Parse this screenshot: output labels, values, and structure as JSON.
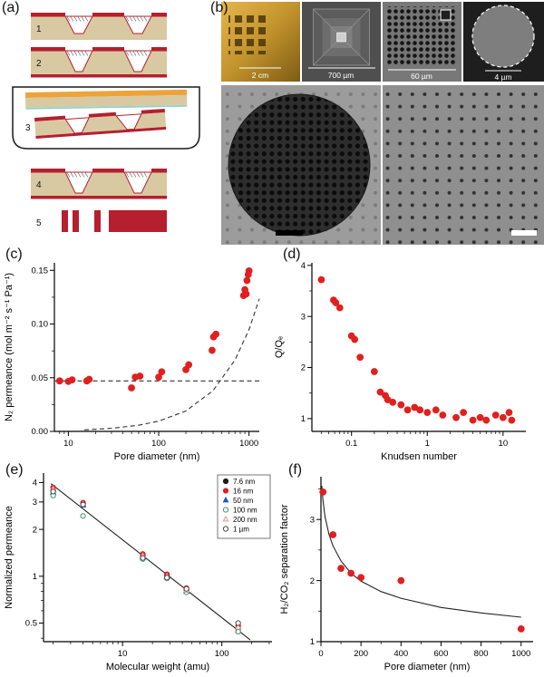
{
  "figure": {
    "panels": {
      "a": {
        "label": "(a)",
        "steps": [
          "1",
          "2",
          "3",
          "4",
          "5"
        ]
      },
      "b": {
        "label": "(b)",
        "scale_labels": [
          "2 cm",
          "700 µm",
          "60 µm",
          "4 µm"
        ]
      },
      "c": {
        "label": "(c)"
      },
      "d": {
        "label": "(d)"
      },
      "e": {
        "label": "(e)"
      },
      "f": {
        "label": "(f)"
      }
    }
  },
  "colors": {
    "data_red": "#e0201f",
    "schematic_red": "#b51f2e",
    "schematic_tan": "#d8c9a3",
    "schematic_orange": "#eda33b",
    "series_black": "#1a1a1a",
    "series_blue": "#2456c4",
    "series_green": "#3d9a62",
    "series_pink": "#ef8f8f",
    "series_dark": "#44474f"
  },
  "chart_data": [
    {
      "id": "c",
      "type": "scatter",
      "xlabel": "Pore diameter (nm)",
      "ylabel": "N₂ permeance (mol m⁻² s⁻¹ Pa⁻¹)",
      "x_scale": "log",
      "x_domain": [
        7,
        1300
      ],
      "x_ticks": [
        10,
        100,
        1000
      ],
      "x_tick_labels": [
        "10",
        "100",
        "1000"
      ],
      "y_scale": "linear",
      "y_domain": [
        0,
        0.157
      ],
      "y_ticks": [
        0,
        0.05,
        0.1,
        0.15
      ],
      "y_tick_labels": [
        "0.00",
        "0.05",
        "0.10",
        "0.15"
      ],
      "y_minor": [
        0.025,
        0.075,
        0.125
      ],
      "lines": [
        {
          "name": "effusion-limit-dashed",
          "style": "dashed",
          "color": "#333333",
          "points": [
            [
              7,
              0.047
            ],
            [
              1300,
              0.047
            ]
          ]
        },
        {
          "name": "continuum-model-dashed",
          "style": "dashed",
          "color": "#333333",
          "points": [
            [
              15,
              0.0014
            ],
            [
              30,
              0.0029
            ],
            [
              60,
              0.0057
            ],
            [
              100,
              0.0095
            ],
            [
              200,
              0.019
            ],
            [
              400,
              0.038
            ],
            [
              700,
              0.0665
            ],
            [
              1000,
              0.095
            ],
            [
              1300,
              0.1235
            ]
          ]
        }
      ],
      "series": [
        {
          "name": "N2 permeance",
          "marker": "circle",
          "color": "#e0201f",
          "open": false,
          "size": 3.4,
          "points": [
            [
              8,
              0.047
            ],
            [
              10,
              0.0465
            ],
            [
              11,
              0.048
            ],
            [
              16,
              0.047
            ],
            [
              17,
              0.0485
            ],
            [
              50,
              0.0405
            ],
            [
              55,
              0.0505
            ],
            [
              62,
              0.0515
            ],
            [
              100,
              0.0505
            ],
            [
              108,
              0.0555
            ],
            [
              200,
              0.0575
            ],
            [
              215,
              0.062
            ],
            [
              390,
              0.0755
            ],
            [
              405,
              0.088
            ],
            [
              430,
              0.0905
            ],
            [
              870,
              0.1265
            ],
            [
              900,
              0.132
            ],
            [
              930,
              0.128
            ],
            [
              950,
              0.1405
            ],
            [
              980,
              0.146
            ],
            [
              1000,
              0.1495
            ]
          ]
        }
      ]
    },
    {
      "id": "d",
      "type": "scatter",
      "xlabel": "Knudsen number",
      "ylabel": "Q/Qₑ",
      "x_scale": "log",
      "x_domain": [
        0.03,
        20
      ],
      "x_ticks": [
        0.1,
        1,
        10
      ],
      "x_tick_labels": [
        "0.1",
        "1",
        "10"
      ],
      "y_scale": "linear",
      "y_domain": [
        0.75,
        4.05
      ],
      "y_ticks": [
        1,
        2,
        3,
        4
      ],
      "y_tick_labels": [
        "1",
        "2",
        "3",
        "4"
      ],
      "y_minor": [
        1.5,
        2.5,
        3.5
      ],
      "series": [
        {
          "name": "Q over QE",
          "marker": "circle",
          "color": "#e0201f",
          "open": false,
          "size": 3.4,
          "points": [
            [
              0.04,
              3.72
            ],
            [
              0.058,
              3.32
            ],
            [
              0.062,
              3.27
            ],
            [
              0.07,
              3.17
            ],
            [
              0.1,
              2.62
            ],
            [
              0.11,
              2.55
            ],
            [
              0.13,
              2.2
            ],
            [
              0.2,
              1.92
            ],
            [
              0.24,
              1.52
            ],
            [
              0.28,
              1.45
            ],
            [
              0.3,
              1.37
            ],
            [
              0.35,
              1.32
            ],
            [
              0.45,
              1.27
            ],
            [
              0.55,
              1.17
            ],
            [
              0.68,
              1.22
            ],
            [
              0.8,
              1.17
            ],
            [
              1.0,
              1.12
            ],
            [
              1.3,
              1.17
            ],
            [
              1.6,
              1.07
            ],
            [
              2.4,
              1.02
            ],
            [
              3.0,
              1.12
            ],
            [
              4.0,
              0.97
            ],
            [
              5.0,
              1.02
            ],
            [
              6.0,
              0.97
            ],
            [
              8.0,
              1.07
            ],
            [
              10,
              1.02
            ],
            [
              12,
              1.12
            ],
            [
              13,
              0.97
            ]
          ]
        }
      ]
    },
    {
      "id": "e",
      "type": "scatter",
      "xlabel": "Molecular weight (amu)",
      "ylabel": "Normalized permeance",
      "x_scale": "log",
      "x_domain": [
        1.6,
        320
      ],
      "x_ticks": [
        10,
        100
      ],
      "x_tick_labels": [
        "10",
        "100"
      ],
      "y_scale": "log",
      "y_domain": [
        0.38,
        4.6
      ],
      "y_ticks": [
        0.5,
        1,
        2,
        3,
        4
      ],
      "y_tick_labels": [
        "0.5",
        "1",
        "2",
        "3",
        "4"
      ],
      "y_minor": [
        0.4,
        0.6,
        0.7,
        0.8,
        0.9
      ],
      "legend_position": "top-right",
      "lines": [
        {
          "name": "inverse-sqrt-mass-fit",
          "style": "solid",
          "color": "#222222",
          "points": [
            [
              1.9,
              3.93
            ],
            [
              193,
              0.39
            ]
          ]
        }
      ],
      "series": [
        {
          "name": "7.6 nm",
          "marker": "circle",
          "color": "#1a1a1a",
          "open": false,
          "size": 2.6,
          "points": [
            [
              2,
              3.55
            ],
            [
              4,
              2.92
            ],
            [
              16,
              1.36
            ],
            [
              28,
              1.01
            ],
            [
              44,
              0.82
            ],
            [
              146,
              0.46
            ]
          ]
        },
        {
          "name": "16 nm",
          "marker": "circle",
          "color": "#e0201f",
          "open": false,
          "size": 2.6,
          "points": [
            [
              2,
              3.72
            ],
            [
              4,
              2.97
            ],
            [
              16,
              1.39
            ],
            [
              28,
              1.03
            ],
            [
              44,
              0.84
            ],
            [
              146,
              0.48
            ]
          ]
        },
        {
          "name": "50 nm",
          "marker": "triangle",
          "color": "#2456c4",
          "open": false,
          "size": 2.8,
          "points": [
            [
              2,
              3.45
            ],
            [
              4,
              2.86
            ],
            [
              16,
              1.33
            ],
            [
              28,
              0.99
            ],
            [
              44,
              0.8
            ],
            [
              146,
              0.45
            ]
          ]
        },
        {
          "name": "100 nm",
          "marker": "circle",
          "color": "#3d9a62",
          "open": true,
          "size": 2.6,
          "points": [
            [
              2,
              3.3
            ],
            [
              4,
              2.44
            ],
            [
              16,
              1.29
            ],
            [
              28,
              0.97
            ],
            [
              44,
              0.79
            ],
            [
              146,
              0.44
            ]
          ]
        },
        {
          "name": "200 nm",
          "marker": "triangle",
          "color": "#ef8f8f",
          "open": true,
          "size": 2.8,
          "points": [
            [
              2,
              3.62
            ],
            [
              4,
              2.9
            ],
            [
              16,
              1.35
            ],
            [
              28,
              1.0
            ],
            [
              44,
              0.81
            ],
            [
              146,
              0.47
            ]
          ]
        },
        {
          "name": "1 µm",
          "marker": "circle",
          "color": "#44474f",
          "open": true,
          "size": 2.6,
          "points": [
            [
              2,
              3.5
            ],
            [
              4,
              2.89
            ],
            [
              16,
              1.31
            ],
            [
              28,
              0.98
            ],
            [
              44,
              0.83
            ],
            [
              146,
              0.5
            ]
          ]
        }
      ]
    },
    {
      "id": "f",
      "type": "scatter",
      "xlabel": "Pore diameter (nm)",
      "ylabel": "H₂/CO₂ separation factor",
      "x_scale": "linear",
      "x_domain": [
        0,
        1060
      ],
      "x_ticks": [
        0,
        200,
        400,
        600,
        800,
        1000
      ],
      "x_tick_labels": [
        "0",
        "200",
        "400",
        "600",
        "800",
        "1000"
      ],
      "x_minor": [
        100,
        300,
        500,
        700,
        900
      ],
      "y_scale": "linear",
      "y_domain": [
        1.0,
        3.7
      ],
      "y_ticks": [
        1,
        2,
        3
      ],
      "y_tick_labels": [
        "1",
        "2",
        "3"
      ],
      "y_minor": [
        1.5,
        2.5,
        3.5
      ],
      "lines": [
        {
          "name": "model-fit",
          "style": "solid",
          "color": "#222222",
          "points": [
            [
              4,
              3.55
            ],
            [
              10,
              3.32
            ],
            [
              20,
              3.05
            ],
            [
              40,
              2.76
            ],
            [
              60,
              2.57
            ],
            [
              100,
              2.32
            ],
            [
              150,
              2.12
            ],
            [
              200,
              1.99
            ],
            [
              300,
              1.82
            ],
            [
              400,
              1.71
            ],
            [
              600,
              1.56
            ],
            [
              800,
              1.47
            ],
            [
              1000,
              1.4
            ]
          ]
        }
      ],
      "series": [
        {
          "name": "separation factor",
          "marker": "circle",
          "color": "#e0201f",
          "open": false,
          "size": 3.4,
          "points": [
            [
              10,
              3.45
            ],
            [
              60,
              2.75
            ],
            [
              100,
              2.2
            ],
            [
              150,
              2.12
            ],
            [
              200,
              2.05
            ],
            [
              400,
              2.0
            ],
            [
              1000,
              1.21
            ]
          ]
        }
      ]
    }
  ]
}
